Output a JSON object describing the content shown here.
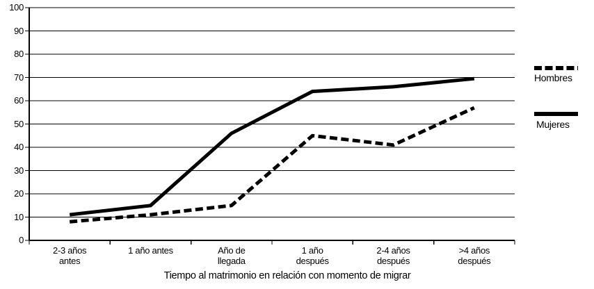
{
  "figure": {
    "background": "#ffffff",
    "line_color": "#000000"
  },
  "chart_data": {
    "type": "line",
    "title": "",
    "xlabel": "Tiempo al matrimonio en relación con momento de migrar",
    "ylabel": "",
    "categories": [
      "2-3 años\nantes",
      "1 año antes",
      "Año de\nllegada",
      "1 año\ndespués",
      "2-4 años\ndespués",
      ">4 años\ndespués"
    ],
    "y_ticks": [
      0,
      10,
      20,
      30,
      40,
      50,
      60,
      70,
      80,
      90,
      100
    ],
    "ylim": [
      0,
      100
    ],
    "grid": "horizontal",
    "legend_position": "right",
    "series": [
      {
        "name": "Hombres",
        "style": "dashed",
        "values": [
          8,
          11,
          15,
          45,
          41,
          57
        ]
      },
      {
        "name": "Mujeres",
        "style": "solid",
        "values": [
          11,
          15,
          46,
          64,
          66,
          69.5
        ]
      }
    ]
  }
}
